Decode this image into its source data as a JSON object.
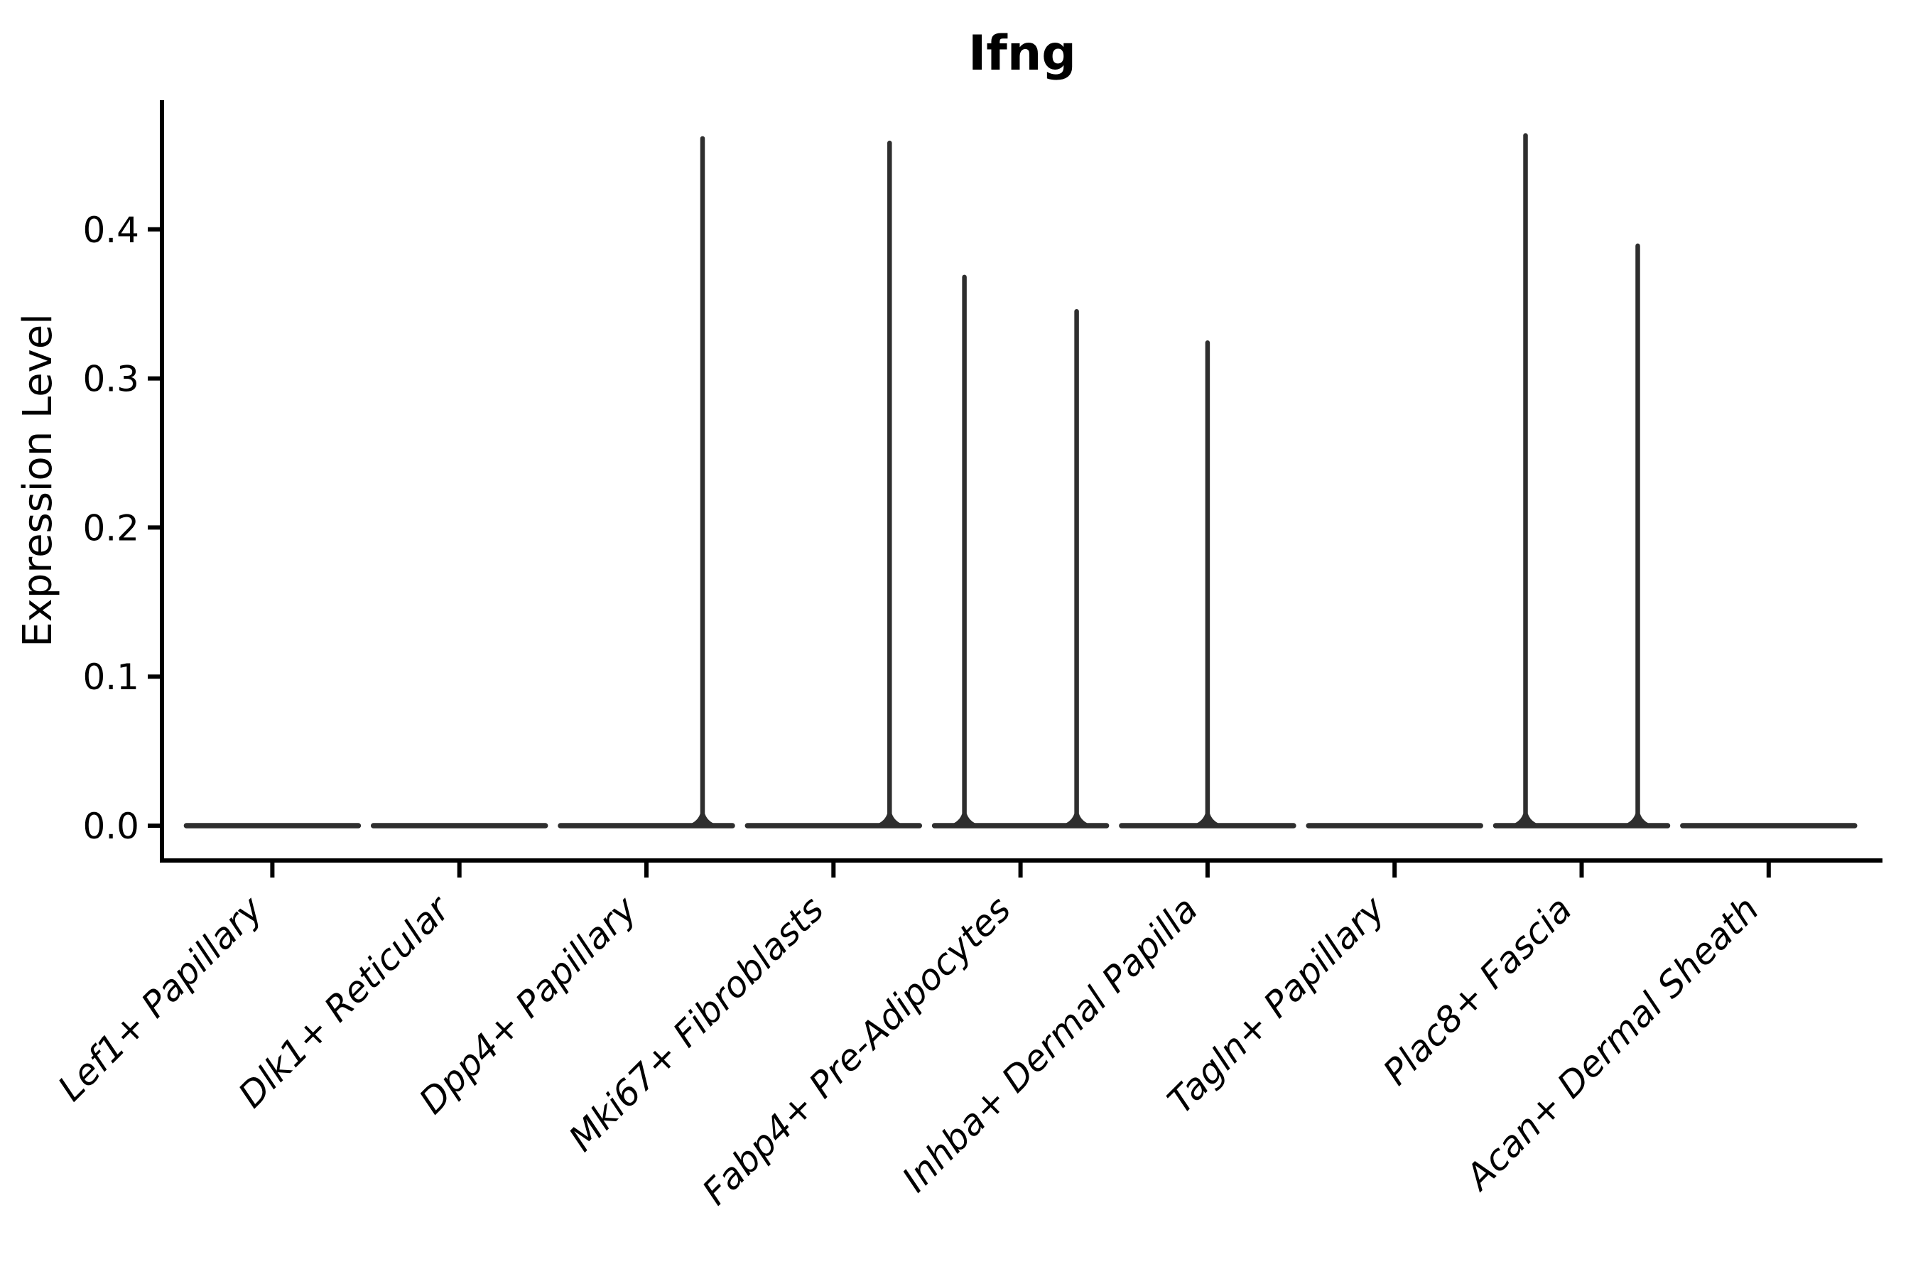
{
  "title": "Ifng",
  "y_axis": {
    "label": "Expression Level",
    "tick_labels": [
      "0.0",
      "0.1",
      "0.2",
      "0.3",
      "0.4"
    ],
    "tick_values": [
      0.0,
      0.1,
      0.2,
      0.3,
      0.4
    ]
  },
  "x_axis": {
    "tick_labels": [
      "Lef1+ Papillary",
      "Dlk1+ Reticular",
      "Dpp4+ Papillary",
      "Mki67+ Fibroblasts",
      "Fabp4+ Pre-Adipocytes",
      "Inhba+ Dermal Papilla",
      "Tagln+ Papillary",
      "Plac8+ Fascia",
      "Acan+ Dermal Sheath"
    ]
  },
  "chart_data": {
    "type": "violin",
    "title": "Ifng",
    "xlabel": "",
    "ylabel": "Expression Level",
    "ylim": [
      -0.023,
      0.487
    ],
    "grid": false,
    "legend": "none",
    "y_ticks": [
      0.0,
      0.1,
      0.2,
      0.3,
      0.4
    ],
    "categories": [
      "Lef1+ Papillary",
      "Dlk1+ Reticular",
      "Dpp4+ Papillary",
      "Mki67+ Fibroblasts",
      "Fabp4+ Pre-Adipocytes",
      "Inhba+ Dermal Papilla",
      "Tagln+ Papillary",
      "Plac8+ Fascia",
      "Acan+ Dermal Sheath"
    ],
    "series": [
      {
        "name": "Lef1+ Papillary",
        "baseline": 0.0,
        "max_expression": 0.0,
        "spikes": []
      },
      {
        "name": "Dlk1+ Reticular",
        "baseline": 0.0,
        "max_expression": 0.0,
        "spikes": []
      },
      {
        "name": "Dpp4+ Papillary",
        "baseline": 0.0,
        "max_expression": 0.461,
        "spikes": [
          {
            "value": 0.461,
            "x_offset": 0.3
          }
        ]
      },
      {
        "name": "Mki67+ Fibroblasts",
        "baseline": 0.0,
        "max_expression": 0.458,
        "spikes": [
          {
            "value": 0.458,
            "x_offset": 0.3
          }
        ]
      },
      {
        "name": "Fabp4+ Pre-Adipocytes",
        "baseline": 0.0,
        "max_expression": 0.368,
        "spikes": [
          {
            "value": 0.368,
            "x_offset": -0.3
          },
          {
            "value": 0.345,
            "x_offset": 0.3
          }
        ]
      },
      {
        "name": "Inhba+ Dermal Papilla",
        "baseline": 0.0,
        "max_expression": 0.324,
        "spikes": [
          {
            "value": 0.324,
            "x_offset": 0.0
          }
        ]
      },
      {
        "name": "Tagln+ Papillary",
        "baseline": 0.0,
        "max_expression": 0.0,
        "spikes": []
      },
      {
        "name": "Plac8+ Fascia",
        "baseline": 0.0,
        "max_expression": 0.463,
        "spikes": [
          {
            "value": 0.463,
            "x_offset": -0.3
          },
          {
            "value": 0.389,
            "x_offset": 0.3
          }
        ]
      },
      {
        "name": "Acan+ Dermal Sheath",
        "baseline": 0.0,
        "max_expression": 0.0,
        "spikes": []
      }
    ],
    "style": {
      "violin_color": "#2e2e2e",
      "axis_color": "#000000",
      "text_color": "#000000",
      "background": "#ffffff"
    }
  }
}
